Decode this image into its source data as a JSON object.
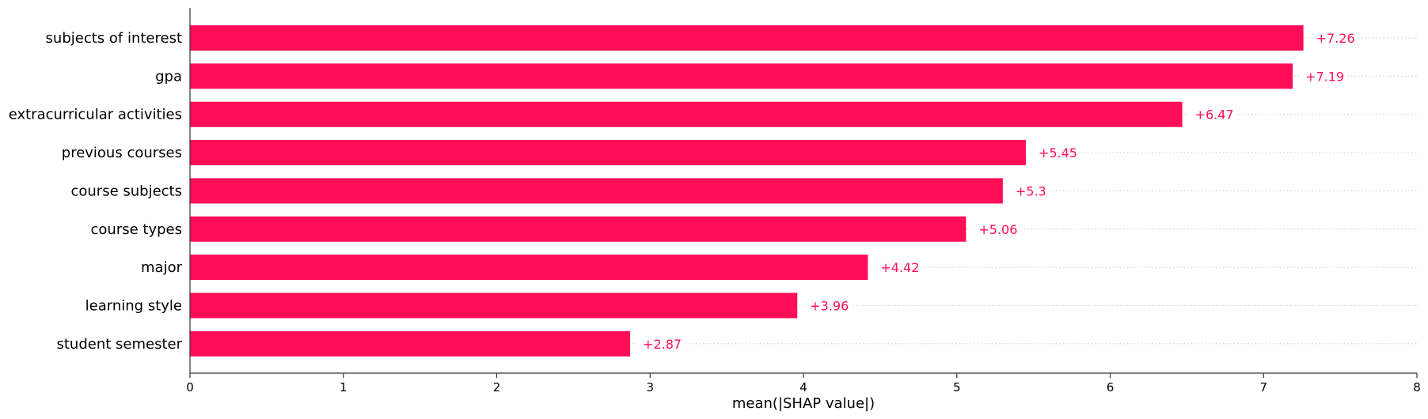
{
  "chart_data": {
    "type": "bar",
    "orientation": "horizontal",
    "categories": [
      "subjects of interest",
      "gpa",
      "extracurricular activities",
      "previous courses",
      "course subjects",
      "course types",
      "major",
      "learning style",
      "student semester"
    ],
    "values": [
      7.26,
      7.19,
      6.47,
      5.45,
      5.3,
      5.06,
      4.42,
      3.96,
      2.87
    ],
    "data_labels": [
      "+7.26",
      "+7.19",
      "+6.47",
      "+5.45",
      "+5.3",
      "+5.06",
      "+4.42",
      "+3.96",
      "+2.87"
    ],
    "title": "",
    "xlabel": "mean(|SHAP value|)",
    "ylabel": "",
    "xlim": [
      0,
      8
    ],
    "xticks": [
      "0",
      "1",
      "2",
      "3",
      "4",
      "5",
      "6",
      "7",
      "8"
    ],
    "bar_color": "#ff0d57",
    "label_color": "#ff0d57",
    "grid": "dotted horizontal guide lines per row",
    "legend": "none"
  }
}
